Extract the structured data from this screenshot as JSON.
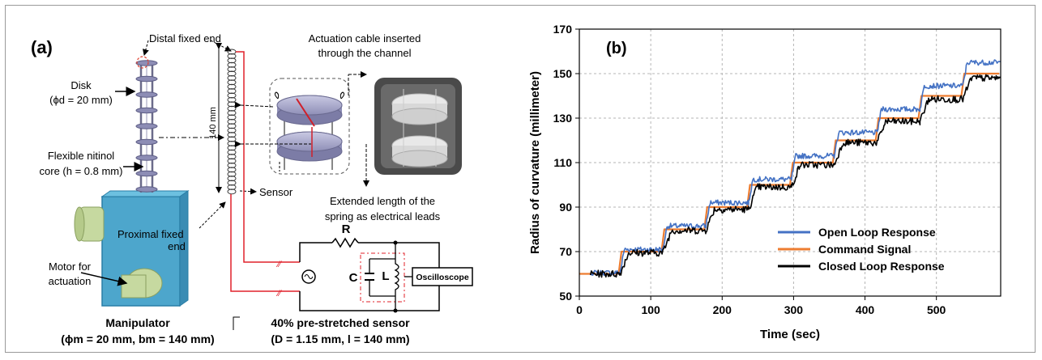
{
  "panel_a": {
    "label": "(a)",
    "distal_label": "Distal fixed end",
    "actuation_label_1": "Actuation cable inserted",
    "actuation_label_2": "through the channel",
    "disk_line1": "Disk",
    "disk_line2": "(ϕd = 20 mm)",
    "nitinol_line1": "Flexible nitinol",
    "nitinol_line2": "core (h = 0.8 mm)",
    "proximal_line1": "Proximal fixed",
    "proximal_line2": "end",
    "motor_line1": "Motor for",
    "motor_line2": "actuation",
    "manipulator_line1": "Manipulator",
    "manipulator_line2": "(ϕm = 20 mm, bm = 140 mm)",
    "length_label": "140 mm",
    "sensor_label": "Sensor",
    "extended_line1": "Extended length of the",
    "extended_line2": "spring as electrical leads",
    "r_label": "R",
    "c_label": "C",
    "l_label": "L",
    "oscilloscope_label": "Oscilloscope",
    "prestretched_line1": "40% pre-stretched sensor",
    "prestretched_line2": "(D = 1.15 mm, l = 140 mm)"
  },
  "chart_data": {
    "type": "line",
    "panel_label": "(b)",
    "xlabel": "Time (sec)",
    "ylabel": "Radius of curvature (millimeter)",
    "xlim": [
      0,
      590
    ],
    "ylim": [
      50,
      170
    ],
    "xticks": [
      0,
      100,
      200,
      300,
      400,
      500
    ],
    "yticks": [
      50,
      70,
      90,
      110,
      130,
      150,
      170
    ],
    "grid": true,
    "legend_position": "bottom-right",
    "steps": [
      {
        "t0": 0,
        "t1": 57,
        "value": 60
      },
      {
        "t0": 57,
        "t1": 117,
        "value": 70
      },
      {
        "t0": 117,
        "t1": 177,
        "value": 80
      },
      {
        "t0": 177,
        "t1": 237,
        "value": 90
      },
      {
        "t0": 237,
        "t1": 297,
        "value": 100
      },
      {
        "t0": 297,
        "t1": 357,
        "value": 110
      },
      {
        "t0": 357,
        "t1": 417,
        "value": 120
      },
      {
        "t0": 417,
        "t1": 477,
        "value": 130
      },
      {
        "t0": 477,
        "t1": 537,
        "value": 140
      },
      {
        "t0": 537,
        "t1": 590,
        "value": 150
      }
    ],
    "series": [
      {
        "name": "Open Loop Response",
        "color": "#4472C4",
        "offsets": [
          0.5,
          1.0,
          1.5,
          2.0,
          2.5,
          3.0,
          3.5,
          4.0,
          4.5,
          5.0
        ],
        "noise": 1.2
      },
      {
        "name": "Command Signal",
        "color": "#ED7D31",
        "offsets": [
          0,
          0,
          0,
          0,
          0,
          0,
          0,
          0,
          0,
          0
        ],
        "noise": 0
      },
      {
        "name": "Closed Loop Response",
        "color": "#000000",
        "offsets": [
          0,
          -0.5,
          -0.5,
          -1.0,
          -1.0,
          -1.0,
          -1.0,
          -1.5,
          -1.5,
          -2.0
        ],
        "noise": 1.6
      }
    ]
  }
}
